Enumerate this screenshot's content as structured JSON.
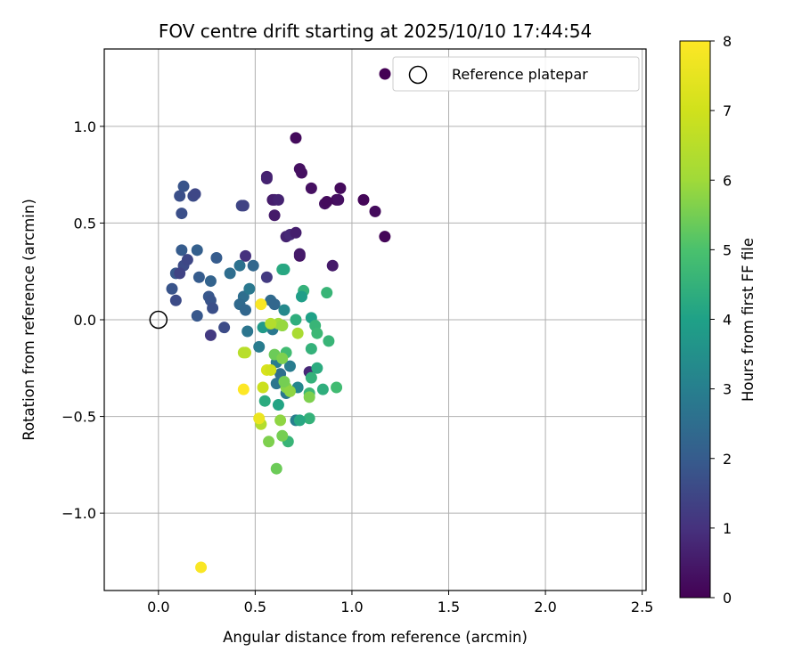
{
  "chart_data": {
    "type": "scatter",
    "title": "FOV centre drift starting at 2025/10/10 17:44:54",
    "xlabel": "Angular distance from reference (arcmin)",
    "ylabel": "Rotation from reference (arcmin)",
    "xlim": [
      -0.28,
      2.52
    ],
    "ylim": [
      -1.4,
      1.4
    ],
    "xticks": [
      0.0,
      0.5,
      1.0,
      1.5,
      2.0,
      2.5
    ],
    "xtick_labels": [
      "0.0",
      "0.5",
      "1.0",
      "1.5",
      "2.0",
      "2.5"
    ],
    "yticks": [
      -1.0,
      -0.5,
      0.0,
      0.5,
      1.0
    ],
    "ytick_labels": [
      "−1.0",
      "−0.5",
      "0.0",
      "0.5",
      "1.0"
    ],
    "grid": true,
    "colorbar": {
      "label": "Hours from first FF file",
      "colormap": "viridis",
      "range": [
        0,
        8
      ],
      "ticks": [
        0,
        1,
        2,
        3,
        4,
        5,
        6,
        7,
        8
      ],
      "tick_labels": [
        "0",
        "1",
        "2",
        "3",
        "4",
        "5",
        "6",
        "7",
        "8"
      ]
    },
    "reference": {
      "label": "Reference platepar",
      "x": 0.0,
      "y": 0.0
    },
    "legend_position": "top-right",
    "points": [
      {
        "x": 0.71,
        "y": 0.94,
        "h": 0.2
      },
      {
        "x": 0.73,
        "y": 0.78,
        "h": 0.3
      },
      {
        "x": 0.74,
        "y": 0.76,
        "h": 0.3
      },
      {
        "x": 0.94,
        "y": 0.68,
        "h": 0.2
      },
      {
        "x": 0.79,
        "y": 0.68,
        "h": 0.3
      },
      {
        "x": 1.06,
        "y": 0.62,
        "h": 0.1
      },
      {
        "x": 0.92,
        "y": 0.62,
        "h": 0.2
      },
      {
        "x": 0.93,
        "y": 0.62,
        "h": 0.3
      },
      {
        "x": 0.86,
        "y": 0.6,
        "h": 0.3
      },
      {
        "x": 0.87,
        "y": 0.61,
        "h": 0.2
      },
      {
        "x": 1.12,
        "y": 0.56,
        "h": 0.2
      },
      {
        "x": 1.17,
        "y": 0.43,
        "h": 0.1
      },
      {
        "x": 0.56,
        "y": 0.74,
        "h": 0.6
      },
      {
        "x": 0.56,
        "y": 0.73,
        "h": 0.7
      },
      {
        "x": 0.59,
        "y": 0.62,
        "h": 0.5
      },
      {
        "x": 0.6,
        "y": 0.62,
        "h": 0.6
      },
      {
        "x": 0.62,
        "y": 0.62,
        "h": 0.7
      },
      {
        "x": 0.6,
        "y": 0.54,
        "h": 0.5
      },
      {
        "x": 0.66,
        "y": 0.43,
        "h": 0.7
      },
      {
        "x": 0.68,
        "y": 0.44,
        "h": 0.8
      },
      {
        "x": 0.71,
        "y": 0.45,
        "h": 0.6
      },
      {
        "x": 0.73,
        "y": 0.33,
        "h": 0.4
      },
      {
        "x": 0.73,
        "y": 0.34,
        "h": 0.5
      },
      {
        "x": 0.9,
        "y": 0.28,
        "h": 0.5
      },
      {
        "x": 0.45,
        "y": 0.33,
        "h": 1.0
      },
      {
        "x": 0.56,
        "y": 0.22,
        "h": 1.2
      },
      {
        "x": 0.13,
        "y": 0.69,
        "h": 1.8
      },
      {
        "x": 0.11,
        "y": 0.64,
        "h": 1.7
      },
      {
        "x": 0.18,
        "y": 0.64,
        "h": 1.6
      },
      {
        "x": 0.19,
        "y": 0.65,
        "h": 1.5
      },
      {
        "x": 0.12,
        "y": 0.55,
        "h": 1.7
      },
      {
        "x": 0.43,
        "y": 0.59,
        "h": 1.5
      },
      {
        "x": 0.44,
        "y": 0.59,
        "h": 1.4
      },
      {
        "x": 0.12,
        "y": 0.36,
        "h": 2.0
      },
      {
        "x": 0.2,
        "y": 0.36,
        "h": 2.1
      },
      {
        "x": 0.09,
        "y": 0.24,
        "h": 1.9
      },
      {
        "x": 0.13,
        "y": 0.28,
        "h": 1.6
      },
      {
        "x": 0.15,
        "y": 0.31,
        "h": 1.5
      },
      {
        "x": 0.11,
        "y": 0.24,
        "h": 1.4
      },
      {
        "x": 0.3,
        "y": 0.32,
        "h": 2.0
      },
      {
        "x": 0.21,
        "y": 0.22,
        "h": 2.0
      },
      {
        "x": 0.07,
        "y": 0.16,
        "h": 1.8
      },
      {
        "x": 0.09,
        "y": 0.1,
        "h": 1.6
      },
      {
        "x": 0.27,
        "y": 0.2,
        "h": 2.2
      },
      {
        "x": 0.26,
        "y": 0.12,
        "h": 1.9
      },
      {
        "x": 0.27,
        "y": 0.1,
        "h": 1.8
      },
      {
        "x": 0.28,
        "y": 0.06,
        "h": 1.7
      },
      {
        "x": 0.2,
        "y": 0.02,
        "h": 1.9
      },
      {
        "x": 0.27,
        "y": -0.08,
        "h": 1.2
      },
      {
        "x": 0.34,
        "y": -0.04,
        "h": 1.6
      },
      {
        "x": 0.37,
        "y": 0.24,
        "h": 2.5
      },
      {
        "x": 0.42,
        "y": 0.28,
        "h": 2.6
      },
      {
        "x": 0.49,
        "y": 0.28,
        "h": 2.3
      },
      {
        "x": 0.44,
        "y": 0.12,
        "h": 2.5
      },
      {
        "x": 0.47,
        "y": 0.16,
        "h": 2.8
      },
      {
        "x": 0.42,
        "y": 0.08,
        "h": 2.4
      },
      {
        "x": 0.45,
        "y": 0.05,
        "h": 2.3
      },
      {
        "x": 0.58,
        "y": 0.1,
        "h": 2.4
      },
      {
        "x": 0.6,
        "y": 0.08,
        "h": 2.3
      },
      {
        "x": 0.46,
        "y": -0.06,
        "h": 2.7
      },
      {
        "x": 0.52,
        "y": -0.14,
        "h": 2.9
      },
      {
        "x": 0.59,
        "y": -0.05,
        "h": 2.8
      },
      {
        "x": 0.61,
        "y": -0.22,
        "h": 2.9
      },
      {
        "x": 0.61,
        "y": -0.33,
        "h": 2.7
      },
      {
        "x": 0.63,
        "y": -0.28,
        "h": 2.5
      },
      {
        "x": 0.68,
        "y": -0.24,
        "h": 2.9
      },
      {
        "x": 0.66,
        "y": -0.38,
        "h": 2.8
      },
      {
        "x": 0.71,
        "y": -0.52,
        "h": 3.0
      },
      {
        "x": 0.72,
        "y": -0.35,
        "h": 3.2
      },
      {
        "x": 0.65,
        "y": 0.05,
        "h": 3.3
      },
      {
        "x": 0.78,
        "y": -0.27,
        "h": 0.8
      },
      {
        "x": 0.64,
        "y": 0.26,
        "h": 4.3
      },
      {
        "x": 0.65,
        "y": 0.26,
        "h": 4.2
      },
      {
        "x": 0.75,
        "y": 0.15,
        "h": 4.5
      },
      {
        "x": 0.74,
        "y": 0.12,
        "h": 3.9
      },
      {
        "x": 0.87,
        "y": 0.14,
        "h": 4.6
      },
      {
        "x": 0.71,
        "y": 0.0,
        "h": 4.4
      },
      {
        "x": 0.79,
        "y": 0.01,
        "h": 4.0
      },
      {
        "x": 0.81,
        "y": -0.03,
        "h": 4.6
      },
      {
        "x": 0.82,
        "y": -0.07,
        "h": 4.7
      },
      {
        "x": 0.54,
        "y": -0.04,
        "h": 3.8
      },
      {
        "x": 0.64,
        "y": -0.03,
        "h": 4.5
      },
      {
        "x": 0.79,
        "y": -0.15,
        "h": 4.5
      },
      {
        "x": 0.88,
        "y": -0.11,
        "h": 4.6
      },
      {
        "x": 0.82,
        "y": -0.25,
        "h": 4.3
      },
      {
        "x": 0.79,
        "y": -0.3,
        "h": 4.5
      },
      {
        "x": 0.85,
        "y": -0.36,
        "h": 4.4
      },
      {
        "x": 0.92,
        "y": -0.35,
        "h": 4.8
      },
      {
        "x": 0.78,
        "y": -0.38,
        "h": 4.7
      },
      {
        "x": 0.78,
        "y": -0.51,
        "h": 4.5
      },
      {
        "x": 0.73,
        "y": -0.52,
        "h": 4.2
      },
      {
        "x": 0.67,
        "y": -0.63,
        "h": 4.6
      },
      {
        "x": 0.55,
        "y": -0.42,
        "h": 4.3
      },
      {
        "x": 0.62,
        "y": -0.44,
        "h": 4.1
      },
      {
        "x": 0.66,
        "y": -0.17,
        "h": 4.8
      },
      {
        "x": 0.6,
        "y": -0.18,
        "h": 5.4
      },
      {
        "x": 0.64,
        "y": -0.2,
        "h": 5.6
      },
      {
        "x": 0.66,
        "y": -0.35,
        "h": 5.7
      },
      {
        "x": 0.65,
        "y": -0.32,
        "h": 5.5
      },
      {
        "x": 0.68,
        "y": -0.37,
        "h": 5.8
      },
      {
        "x": 0.72,
        "y": -0.07,
        "h": 6.2
      },
      {
        "x": 0.62,
        "y": -0.02,
        "h": 6.0
      },
      {
        "x": 0.64,
        "y": -0.03,
        "h": 5.9
      },
      {
        "x": 0.78,
        "y": -0.4,
        "h": 5.6
      },
      {
        "x": 0.63,
        "y": -0.52,
        "h": 5.8
      },
      {
        "x": 0.64,
        "y": -0.6,
        "h": 5.5
      },
      {
        "x": 0.57,
        "y": -0.63,
        "h": 5.6
      },
      {
        "x": 0.61,
        "y": -0.77,
        "h": 5.4
      },
      {
        "x": 0.53,
        "y": -0.54,
        "h": 6.4
      },
      {
        "x": 0.45,
        "y": -0.17,
        "h": 6.6
      },
      {
        "x": 0.44,
        "y": -0.17,
        "h": 6.5
      },
      {
        "x": 0.58,
        "y": -0.02,
        "h": 6.4
      },
      {
        "x": 0.54,
        "y": -0.35,
        "h": 6.9
      },
      {
        "x": 0.56,
        "y": -0.26,
        "h": 7.2
      },
      {
        "x": 0.58,
        "y": -0.26,
        "h": 7.0
      },
      {
        "x": 0.53,
        "y": 0.08,
        "h": 7.9
      },
      {
        "x": 0.44,
        "y": -0.36,
        "h": 8.0
      },
      {
        "x": 0.52,
        "y": -0.51,
        "h": 7.6
      },
      {
        "x": 0.22,
        "y": -1.28,
        "h": 7.9
      }
    ]
  }
}
